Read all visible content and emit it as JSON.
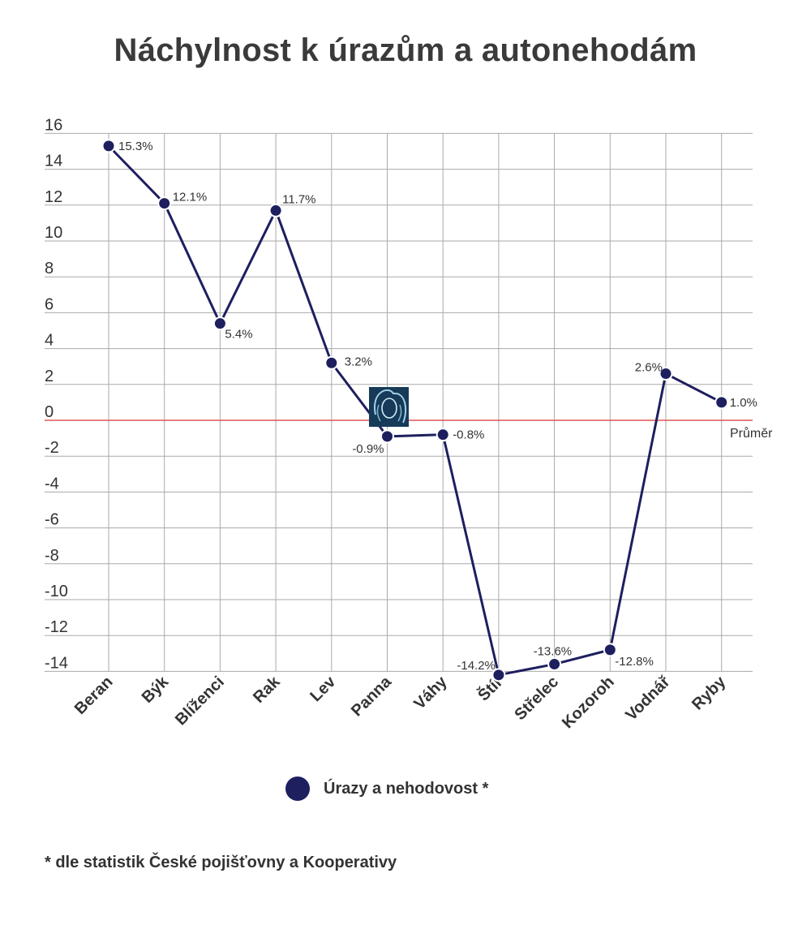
{
  "footnote": "* dle statistik České pojišťovny a Kooperativy",
  "chart_data": {
    "type": "line",
    "title": "Náchylnost k úrazům a autonehodám",
    "xlabel": "",
    "ylabel": "",
    "categories": [
      "Beran",
      "Býk",
      "Blíženci",
      "Rak",
      "Lev",
      "Panna",
      "Váhy",
      "Štír",
      "Střelec",
      "Kozoroh",
      "Vodnář",
      "Ryby"
    ],
    "series": [
      {
        "name": "Úrazy a nehodovost *",
        "values": [
          15.3,
          12.1,
          5.4,
          11.7,
          3.2,
          -0.9,
          -0.8,
          -14.2,
          -13.6,
          -12.8,
          2.6,
          1.0
        ],
        "labels": [
          "15.3%",
          "12.1%",
          "5.4%",
          "11.7%",
          "3.2%",
          "-0.9%",
          "-0.8%",
          "-14.2%",
          "-13.6%",
          "-12.8%",
          "2.6%",
          "1.0%"
        ],
        "color": "#1e1f5f"
      }
    ],
    "yticks": [
      16,
      14,
      12,
      10,
      8,
      6,
      4,
      2,
      0,
      -2,
      -4,
      -6,
      -8,
      -10,
      -12,
      -14
    ],
    "ylim": [
      -14.5,
      15.5
    ],
    "grid": true,
    "reference_line": {
      "value": 0,
      "label": "Průměr",
      "color": "#e05555"
    },
    "legend": {
      "position": "bottom"
    },
    "icon": "virgo-zodiac-icon"
  }
}
